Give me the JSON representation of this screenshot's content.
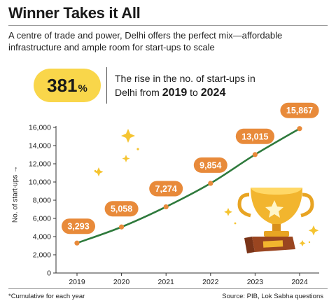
{
  "header": {
    "title": "Winner Takes it All",
    "subtitle": "A centre of trade and power, Delhi offers the perfect mix—affordable infrastructure and ample room for start-ups to scale"
  },
  "highlight": {
    "value": "381",
    "unit": "%",
    "text_prefix": "The rise in the no. of start-ups in",
    "text_city": "Delhi from ",
    "year_from": "2019",
    "text_to": " to ",
    "year_to": "2024"
  },
  "chart_data": {
    "type": "line",
    "x": [
      "2019",
      "2020",
      "2021",
      "2022",
      "2023",
      "2024"
    ],
    "values": [
      3293,
      5058,
      7274,
      9854,
      13015,
      15867
    ],
    "data_labels": [
      "3,293",
      "5,058",
      "7,274",
      "9,854",
      "13,015",
      "15,867"
    ],
    "ylabel": "No. of start-ups →",
    "ylim": [
      0,
      16000
    ],
    "yticks": [
      0,
      2000,
      4000,
      6000,
      8000,
      10000,
      12000,
      14000,
      16000
    ],
    "ytick_labels": [
      "0",
      "2,000",
      "4,000",
      "6,000",
      "8,000",
      "10,000",
      "12,000",
      "14,000",
      "16,000"
    ],
    "grid": false,
    "colors": {
      "line": "#2e7a3c",
      "marker": "#e88a3a",
      "label_bg": "#e88a3a",
      "label_text": "#ffffff",
      "axis": "#333333"
    }
  },
  "footer": {
    "footnote": "*Cumulative for each year",
    "source": "Source: PIB, Lok Sabha questions"
  },
  "decor": {
    "icons": [
      "trophy-icon",
      "sparkle-icon"
    ]
  }
}
